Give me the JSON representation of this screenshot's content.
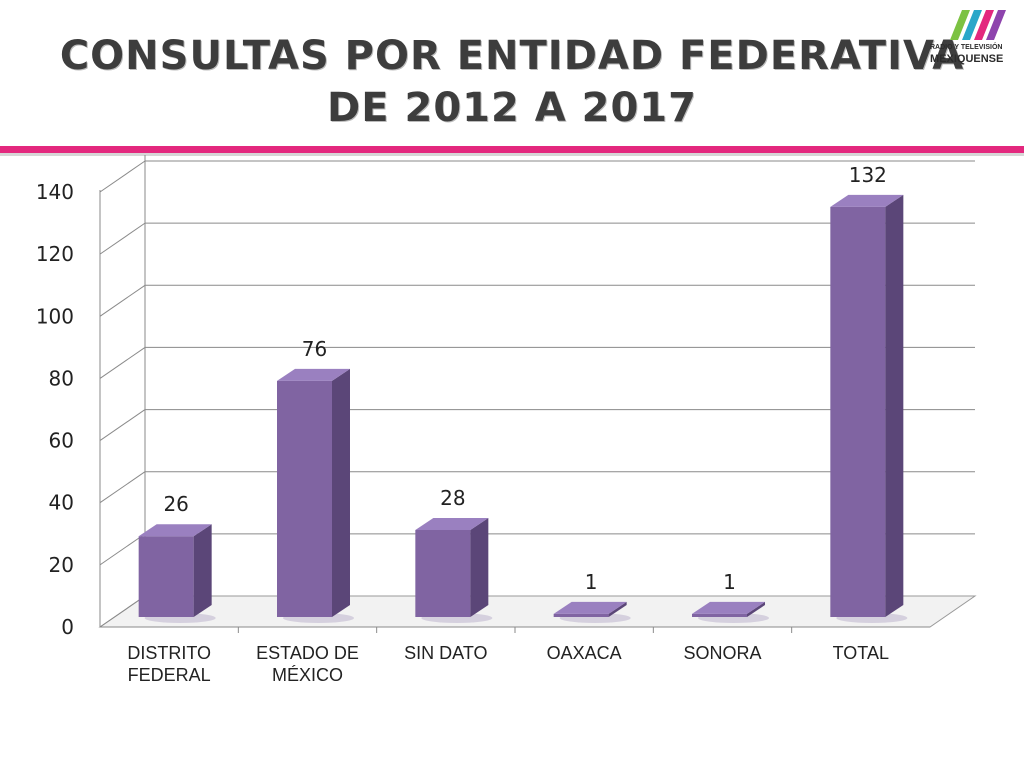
{
  "slide": {
    "title_line1": "CONSULTAS POR ENTIDAD FEDERATIVA",
    "title_line2": "DE 2012 A 2017"
  },
  "logo": {
    "line1": "RADIO Y TELEVISIÓN",
    "line2": "MEXIQUENSE",
    "stripe_colors": [
      "#7cc242",
      "#2aa7c9",
      "#e3287e",
      "#8e44ad"
    ]
  },
  "chart_data": {
    "type": "bar",
    "categories": [
      [
        "DISTRITO",
        "FEDERAL"
      ],
      [
        "ESTADO DE",
        "MÉXICO"
      ],
      [
        "SIN DATO"
      ],
      [
        "OAXACA"
      ],
      [
        "SONORA"
      ],
      [
        "TOTAL"
      ]
    ],
    "values": [
      26,
      76,
      28,
      1,
      1,
      132
    ],
    "data_labels": [
      "26",
      "76",
      "28",
      "1",
      "1",
      "132"
    ],
    "ylim": [
      0,
      140
    ],
    "yticks": [
      0,
      20,
      40,
      60,
      80,
      100,
      120,
      140
    ],
    "grid": true,
    "bar_color": "#8064a2",
    "title": "",
    "xlabel": "",
    "ylabel": ""
  }
}
